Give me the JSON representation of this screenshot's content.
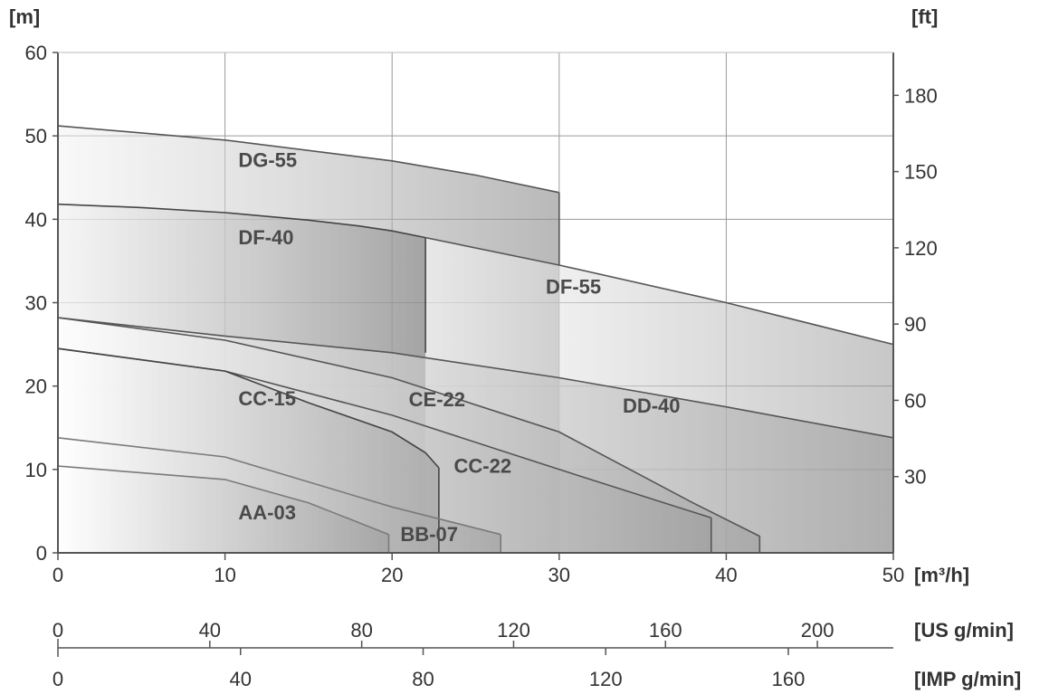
{
  "chart_data": {
    "type": "area",
    "x_unit": "[m³/h]",
    "y_unit_left": "[m]",
    "y_unit_right": "[ft]",
    "xlim": [
      0,
      50
    ],
    "ylim": [
      0,
      60
    ],
    "x_ticks": [
      "0",
      "10",
      "20",
      "30",
      "40",
      "50"
    ],
    "y_ticks_left": [
      "0",
      "10",
      "20",
      "30",
      "40",
      "50",
      "60"
    ],
    "y_ticks_right": [
      "30",
      "60",
      "90",
      "120",
      "150",
      "180"
    ],
    "grid": true,
    "secondary_axes": [
      {
        "unit": "[US g/min]",
        "ticks": [
          "0",
          "40",
          "80",
          "120",
          "160",
          "200"
        ],
        "max_at_50": 220
      },
      {
        "unit": "[IMP g/min]",
        "ticks": [
          "0",
          "40",
          "80",
          "120",
          "160"
        ],
        "max_at_50": 183
      }
    ],
    "series": [
      {
        "name": "DG-55",
        "x": [
          0,
          10,
          20,
          25,
          30
        ],
        "y": [
          51.2,
          49.5,
          47.0,
          45.3,
          43.2
        ],
        "end": 30,
        "end_y_bottom": 34.5
      },
      {
        "name": "DF-40",
        "x": [
          0,
          5,
          10,
          15,
          18,
          20,
          22
        ],
        "y": [
          41.8,
          41.4,
          40.8,
          39.9,
          39.2,
          38.6,
          37.8
        ],
        "end": 22,
        "end_y_bottom": 24.0
      },
      {
        "name": "DF-55",
        "x": [
          22,
          30,
          40,
          50
        ],
        "y": [
          37.8,
          34.5,
          30.0,
          25.0
        ]
      },
      {
        "name": "DD-40",
        "x": [
          0,
          10,
          20,
          30,
          40,
          50
        ],
        "y": [
          28.2,
          26.0,
          24.0,
          21.0,
          17.5,
          13.8
        ]
      },
      {
        "name": "CE-22",
        "x": [
          0,
          10,
          20,
          30,
          38,
          42
        ],
        "y": [
          28.2,
          25.5,
          21.0,
          14.5,
          6.0,
          2.0
        ],
        "end": 42
      },
      {
        "name": "CC-22",
        "x": [
          0,
          10,
          20,
          30,
          39.1
        ],
        "y": [
          24.5,
          21.8,
          16.5,
          10.0,
          4.2
        ],
        "end": 39.1
      },
      {
        "name": "CC-15",
        "x": [
          0,
          10,
          15,
          20,
          22,
          22.8
        ],
        "y": [
          24.5,
          21.8,
          18.0,
          14.5,
          12.0,
          10.2
        ],
        "end": 22.8
      },
      {
        "name": "BB-07",
        "x": [
          0,
          10,
          20,
          26.5
        ],
        "y": [
          13.8,
          11.5,
          5.5,
          2.2
        ],
        "end": 26.5
      },
      {
        "name": "AA-03",
        "x": [
          0,
          10,
          15,
          19.8
        ],
        "y": [
          10.4,
          8.8,
          6.0,
          2.2
        ],
        "end": 19.8
      }
    ],
    "labels": [
      {
        "text": "DG-55",
        "x": 10.8,
        "y": 46.3
      },
      {
        "text": "DF-40",
        "x": 10.8,
        "y": 37.0
      },
      {
        "text": "DF-55",
        "x": 29.2,
        "y": 31.1
      },
      {
        "text": "DD-40",
        "x": 33.8,
        "y": 16.8
      },
      {
        "text": "CE-22",
        "x": 21.0,
        "y": 17.6
      },
      {
        "text": "CC-15",
        "x": 10.8,
        "y": 17.7
      },
      {
        "text": "CC-22",
        "x": 23.7,
        "y": 9.6
      },
      {
        "text": "AA-03",
        "x": 10.8,
        "y": 4.0
      },
      {
        "text": "BB-07",
        "x": 20.5,
        "y": 1.4
      }
    ]
  }
}
